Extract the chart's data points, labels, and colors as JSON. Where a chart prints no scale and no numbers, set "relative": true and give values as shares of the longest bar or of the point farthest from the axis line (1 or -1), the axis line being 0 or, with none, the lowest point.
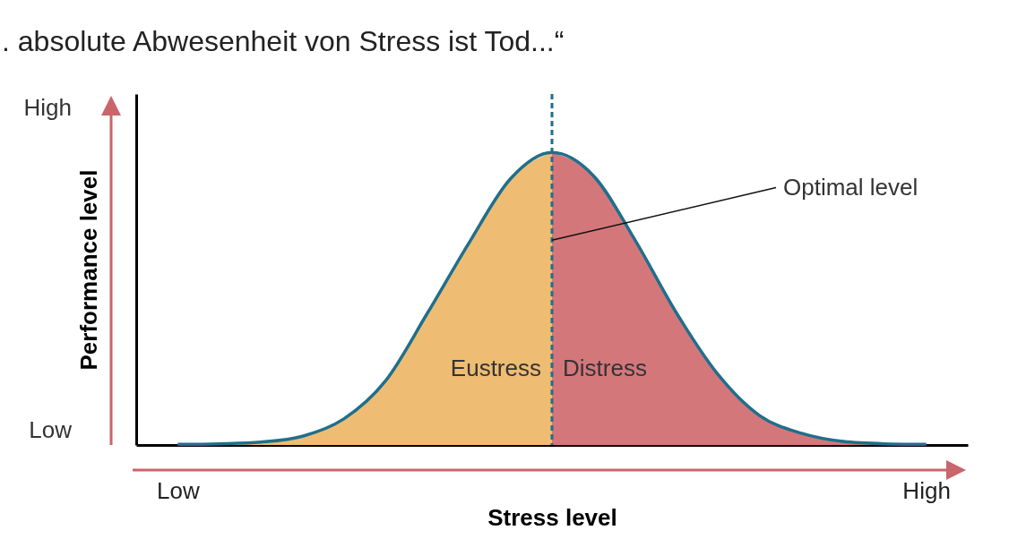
{
  "chart_data": {
    "type": "area",
    "title": ". absolute Abwesenheit von Stress ist Tod...“",
    "xlabel": "Stress level",
    "ylabel": "Performance level",
    "relative": true,
    "grid": false,
    "categories": [
      "Low",
      null,
      null,
      null,
      null,
      null,
      null,
      null,
      null,
      null,
      null,
      null,
      null,
      null,
      null,
      null,
      null,
      null,
      "High"
    ],
    "series": [
      {
        "name": "Eustress",
        "color": "#efbc73",
        "values": [
          0.002,
          0.004,
          0.01,
          0.03,
          0.09,
          0.22,
          0.45,
          0.69,
          0.91,
          1,
          null,
          null,
          null,
          null,
          null,
          null,
          null,
          null,
          null
        ]
      },
      {
        "name": "Distress",
        "color": "#d4777b",
        "values": [
          null,
          null,
          null,
          null,
          null,
          null,
          null,
          null,
          null,
          1,
          0.92,
          0.7,
          0.45,
          0.24,
          0.1,
          0.04,
          0.012,
          0.004,
          0.002
        ]
      },
      {
        "type": "line",
        "color": "#1f6f8b",
        "values": [
          0.002,
          0.004,
          0.01,
          0.03,
          0.09,
          0.22,
          0.45,
          0.69,
          0.91,
          1,
          0.92,
          0.7,
          0.45,
          0.24,
          0.1,
          0.04,
          0.012,
          0.004,
          0.002
        ]
      }
    ],
    "annotations": [
      "High",
      "Low",
      "Optimal level"
    ]
  }
}
